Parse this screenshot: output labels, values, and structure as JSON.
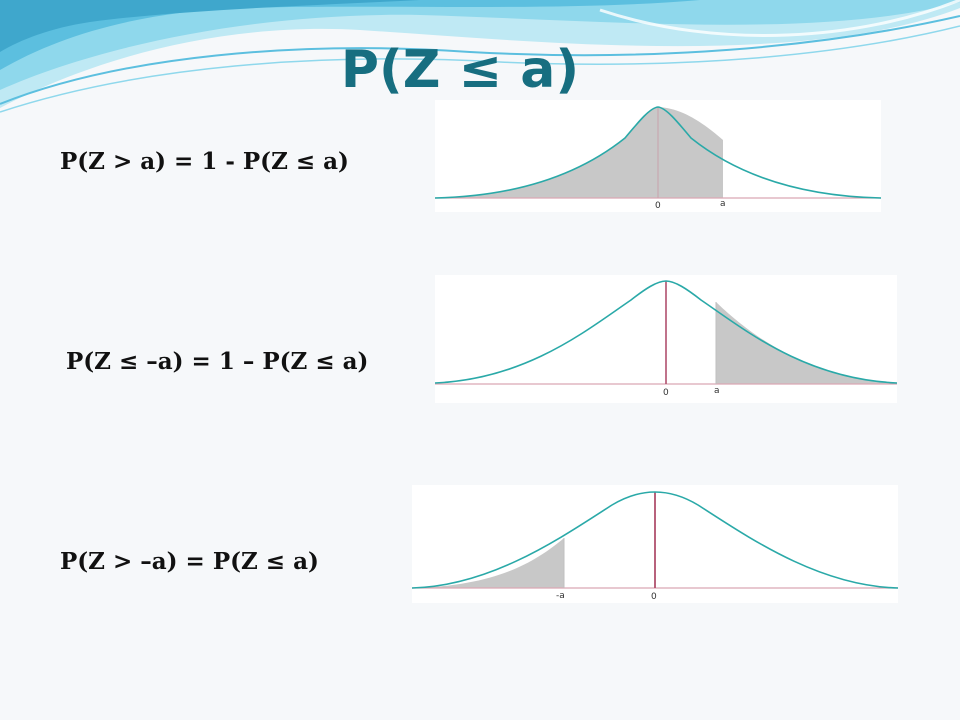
{
  "slide": {
    "title": "P(Z ≤ a)",
    "rows": [
      {
        "formula": "P(Z > a) = 1 - P(Z ≤ a)",
        "graph": {
          "shaded_region": "left of a",
          "tick_labels": [
            "0",
            "a"
          ]
        }
      },
      {
        "formula": "P(Z ≤ –a) = 1 – P(Z ≤ a)",
        "graph": {
          "shaded_region": "right of a",
          "tick_labels": [
            "0",
            "a"
          ]
        }
      },
      {
        "formula": "P(Z > –a) = P(Z ≤ a)",
        "graph": {
          "shaded_region": "left of -a",
          "tick_labels": [
            "-a",
            "0"
          ]
        }
      }
    ]
  },
  "colors": {
    "title": "#176e80",
    "curve": "#2aa9a8",
    "shade": "#c8c8c8",
    "axis": "#d9a7b3",
    "mean_line": "#b0506e",
    "wave_light": "#bfe9f4",
    "wave_mid": "#7fd3ea",
    "wave_dark": "#3fa7cc"
  }
}
